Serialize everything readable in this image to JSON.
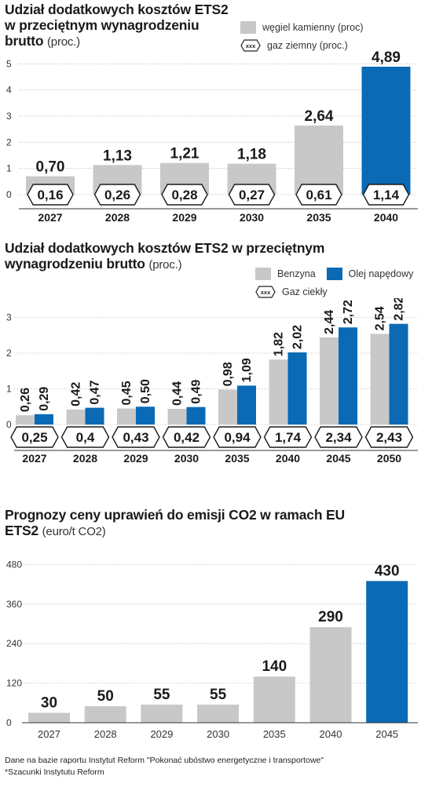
{
  "colors": {
    "gray": "#c8c8c8",
    "blue": "#0a6ab5",
    "axis": "#333333",
    "grid": "#bdbdbd"
  },
  "chart1": {
    "title_bold": "Udział dodatkowych kosztów ETS2 w przeciętnym wynagrodzeniu brutto",
    "title_unit": "(proc.)",
    "legend_coal": "węgiel kamienny (proc)",
    "legend_gas": "gaz ziemny (proc.)",
    "legend_marker": "xxx",
    "y_ticks": [
      "0",
      "1",
      "2",
      "3",
      "4",
      "5"
    ]
  },
  "chart2": {
    "title_bold": "Udział dodatkowych kosztów ETS2 w przeciętnym wynagrodzeniu brutto",
    "title_unit": "(proc.)",
    "legend_petrol": "Benzyna",
    "legend_diesel": "Olej napędowy",
    "legend_lpg": "Gaz ciekły",
    "legend_marker": "xxx",
    "y_ticks": [
      "0",
      "1",
      "2",
      "3"
    ]
  },
  "chart3": {
    "title_bold": "Prognozy ceny uprawień do emisji CO2 w ramach EU ETS2",
    "title_unit": "(euro/t CO2)",
    "y_ticks": [
      "0",
      "120",
      "240",
      "360",
      "480"
    ]
  },
  "footnotes": {
    "line1": "Dane na bazie raportu Instytut Reform \"Pokonać ubóstwo  energetyczne i transportowe\"",
    "line2": "*Szacunki Instytutu Reform"
  },
  "chart_data": [
    {
      "type": "bar",
      "title": "Udział dodatkowych kosztów ETS2 w przeciętnym wynagrodzeniu brutto (proc.)",
      "categories": [
        "2027",
        "2028",
        "2029",
        "2030",
        "2035",
        "2040"
      ],
      "series": [
        {
          "name": "węgiel kamienny (proc)",
          "values": [
            0.7,
            1.13,
            1.21,
            1.18,
            2.64,
            4.89
          ],
          "labels": [
            "0,70",
            "1,13",
            "1,21",
            "1,18",
            "2,64",
            "4,89"
          ]
        },
        {
          "name": "gaz ziemny (proc.)",
          "values": [
            0.16,
            0.26,
            0.28,
            0.27,
            0.61,
            1.14
          ],
          "labels": [
            "0,16",
            "0,26",
            "0,28",
            "0,27",
            "0,61",
            "1,14"
          ]
        }
      ],
      "ylim": [
        0,
        5
      ],
      "grid": true,
      "highlight_last": true
    },
    {
      "type": "bar",
      "title": "Udział dodatkowych kosztów ETS2 w przeciętnym wynagrodzeniu brutto (proc.)",
      "categories": [
        "2027",
        "2028",
        "2029",
        "2030",
        "2035",
        "2040",
        "2045",
        "2050"
      ],
      "series": [
        {
          "name": "Benzyna",
          "values": [
            0.26,
            0.42,
            0.45,
            0.44,
            0.98,
            1.82,
            2.44,
            2.54
          ],
          "labels": [
            "0,26",
            "0,42",
            "0,45",
            "0,44",
            "0,98",
            "1,82",
            "2,44",
            "2,54"
          ]
        },
        {
          "name": "Olej napędowy",
          "values": [
            0.29,
            0.47,
            0.5,
            0.49,
            1.09,
            2.02,
            2.72,
            2.82
          ],
          "labels": [
            "0,29",
            "0,47",
            "0,50",
            "0,49",
            "1,09",
            "2,02",
            "2,72",
            "2,82"
          ]
        },
        {
          "name": "Gaz ciekły",
          "values": [
            0.25,
            0.4,
            0.43,
            0.42,
            0.94,
            1.74,
            2.34,
            2.43
          ],
          "labels": [
            "0,25",
            "0,4",
            "0,43",
            "0,42",
            "0,94",
            "1,74",
            "2,34",
            "2,43"
          ]
        }
      ],
      "ylim": [
        0,
        3
      ],
      "grid": true
    },
    {
      "type": "bar",
      "title": "Prognozy ceny uprawień do emisji CO2 w ramach EU ETS2 (euro/t CO2)",
      "categories": [
        "2027",
        "2028",
        "2029",
        "2030",
        "2035",
        "2040",
        "2045"
      ],
      "values": [
        30,
        50,
        55,
        55,
        140,
        290,
        430
      ],
      "labels": [
        "30",
        "50",
        "55",
        "55",
        "140",
        "290",
        "430"
      ],
      "ylim": [
        0,
        480
      ],
      "grid": true,
      "highlight_last": true
    }
  ]
}
